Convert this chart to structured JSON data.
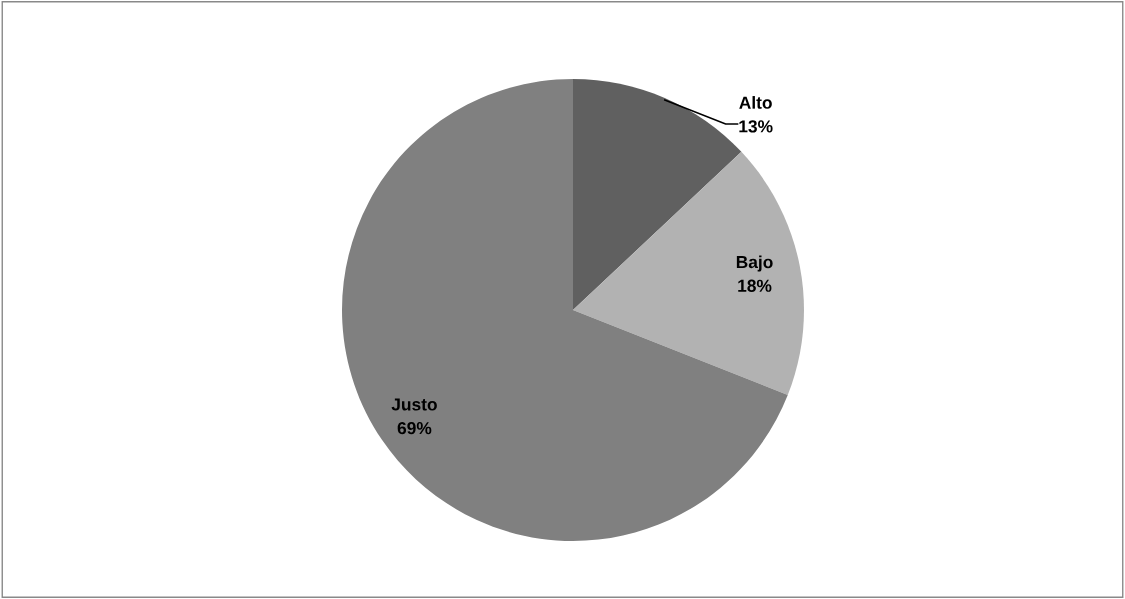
{
  "chart_data": {
    "type": "pie",
    "categories": [
      "Alto",
      "Bajo",
      "Justo"
    ],
    "values": [
      13,
      18,
      69
    ],
    "colors": [
      "#606060",
      "#b2b2b2",
      "#808080"
    ],
    "value_labels": [
      "13%",
      "18%",
      "69%"
    ]
  }
}
